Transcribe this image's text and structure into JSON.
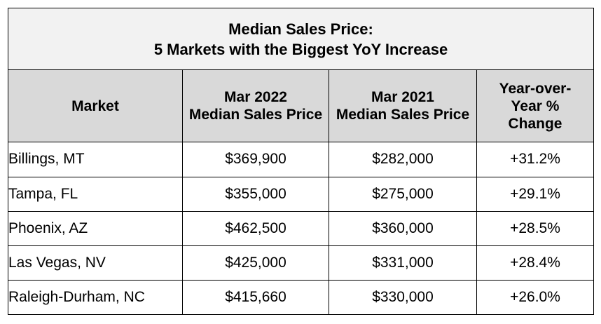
{
  "title": {
    "line1": "Median Sales Price:",
    "line2": "5 Markets with the Biggest YoY Increase"
  },
  "columns": [
    {
      "lines": [
        "Market"
      ]
    },
    {
      "lines": [
        "Mar 2022",
        "Median Sales Price"
      ]
    },
    {
      "lines": [
        "Mar 2021",
        "Median Sales Price"
      ]
    },
    {
      "lines": [
        "Year-over-",
        "Year %",
        "Change"
      ]
    }
  ],
  "rows": [
    [
      "Billings, MT",
      "$369,900",
      "$282,000",
      "+31.2%"
    ],
    [
      "Tampa, FL",
      "$355,000",
      "$275,000",
      "+29.1%"
    ],
    [
      "Phoenix, AZ",
      "$462,500",
      "$360,000",
      "+28.5%"
    ],
    [
      "Las Vegas, NV",
      "$425,000",
      "$331,000",
      "+28.4%"
    ],
    [
      "Raleigh-Durham, NC",
      "$415,660",
      "$330,000",
      "+26.0%"
    ]
  ],
  "colors": {
    "title_bg": "#f2f2f2",
    "header_bg": "#d9d9d9",
    "border": "#000000"
  },
  "chart_data": {
    "type": "table",
    "title": "Median Sales Price: 5 Markets with the Biggest YoY Increase",
    "columns": [
      "Market",
      "Mar 2022 Median Sales Price",
      "Mar 2021 Median Sales Price",
      "Year-over-Year % Change"
    ],
    "rows": [
      [
        "Billings, MT",
        369900,
        282000,
        31.2
      ],
      [
        "Tampa, FL",
        355000,
        275000,
        29.1
      ],
      [
        "Phoenix, AZ",
        462500,
        360000,
        28.5
      ],
      [
        "Las Vegas, NV",
        425000,
        331000,
        28.4
      ],
      [
        "Raleigh-Durham, NC",
        415660,
        330000,
        26.0
      ]
    ]
  }
}
